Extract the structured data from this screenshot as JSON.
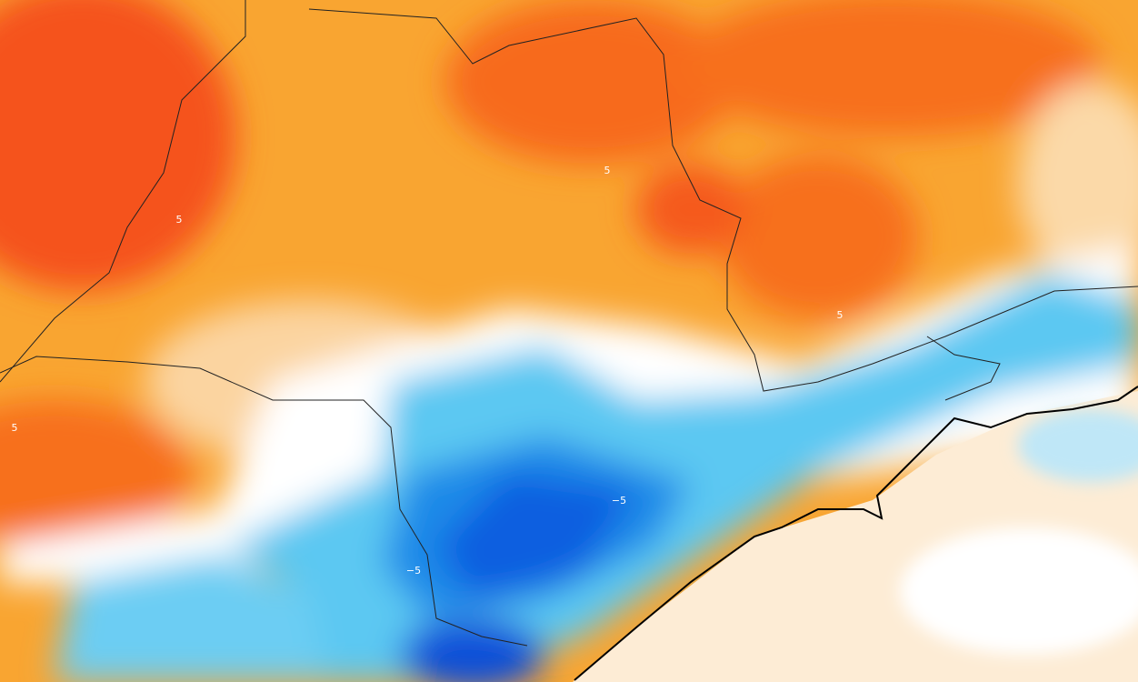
{
  "map": {
    "contour_labels": [
      "5",
      "5",
      "5",
      "5",
      "−5",
      "−5"
    ]
  }
}
